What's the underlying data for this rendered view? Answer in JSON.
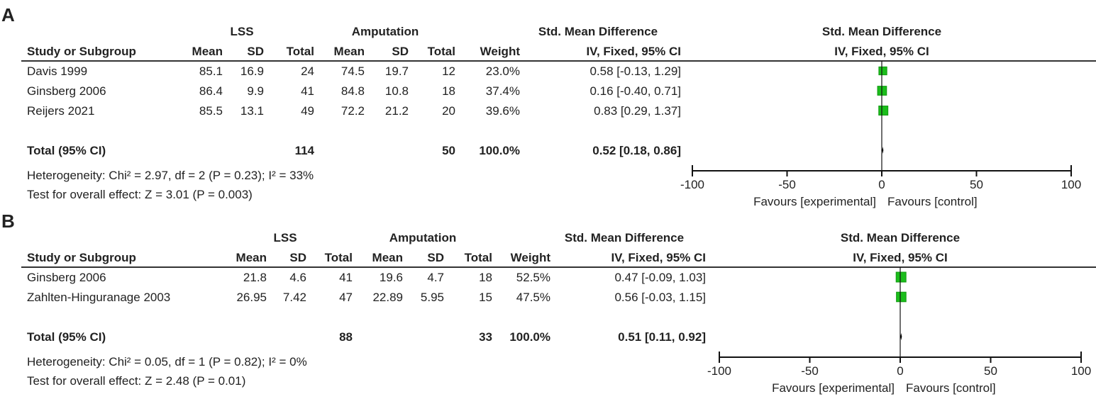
{
  "chart_data": [
    {
      "type": "forest",
      "label": "A",
      "group_experimental": "LSS",
      "group_control": "Amputation",
      "columns": [
        "Study or Subgroup",
        "Mean",
        "SD",
        "Total",
        "Mean",
        "SD",
        "Total",
        "Weight",
        "IV, Fixed, 95% CI"
      ],
      "effect_title": "Std. Mean Difference",
      "effect_method": "IV, Fixed, 95% CI",
      "plot_title": "Std. Mean Difference",
      "plot_method": "IV, Fixed, 95% CI",
      "studies": [
        {
          "name": "Davis 1999",
          "mean_e": "85.1",
          "sd_e": "16.9",
          "total_e": "24",
          "mean_c": "74.5",
          "sd_c": "19.7",
          "total_c": "12",
          "weight": "23.0%",
          "ci_text": "0.58 [-0.13, 1.29]",
          "est": 0.58,
          "lo": -0.13,
          "hi": 1.29,
          "w": 23.0
        },
        {
          "name": "Ginsberg 2006",
          "mean_e": "86.4",
          "sd_e": "9.9",
          "total_e": "41",
          "mean_c": "84.8",
          "sd_c": "10.8",
          "total_c": "18",
          "weight": "37.4%",
          "ci_text": "0.16 [-0.40, 0.71]",
          "est": 0.16,
          "lo": -0.4,
          "hi": 0.71,
          "w": 37.4
        },
        {
          "name": "Reijers 2021",
          "mean_e": "85.5",
          "sd_e": "13.1",
          "total_e": "49",
          "mean_c": "72.2",
          "sd_c": "21.2",
          "total_c": "20",
          "weight": "39.6%",
          "ci_text": "0.83 [0.29, 1.37]",
          "est": 0.83,
          "lo": 0.29,
          "hi": 1.37,
          "w": 39.6
        }
      ],
      "total": {
        "name": "Total (95% CI)",
        "total_e": "114",
        "total_c": "50",
        "weight": "100.0%",
        "ci_text": "0.52 [0.18, 0.86]",
        "est": 0.52,
        "lo": 0.18,
        "hi": 0.86
      },
      "heterogeneity": "Heterogeneity: Chi² = 2.97, df = 2 (P = 0.23); I² = 33%",
      "overall_effect": "Test for overall effect: Z = 3.01 (P = 0.003)",
      "xlim": [
        -100,
        100
      ],
      "ticks": [
        -100,
        -50,
        0,
        50,
        100
      ],
      "favours_left": "Favours [experimental]",
      "favours_right": "Favours [control]"
    },
    {
      "type": "forest",
      "label": "B",
      "group_experimental": "LSS",
      "group_control": "Amputation",
      "columns": [
        "Study or Subgroup",
        "Mean",
        "SD",
        "Total",
        "Mean",
        "SD",
        "Total",
        "Weight",
        "IV, Fixed, 95% CI"
      ],
      "effect_title": "Std. Mean Difference",
      "effect_method": "IV, Fixed, 95% CI",
      "plot_title": "Std. Mean Difference",
      "plot_method": "IV, Fixed, 95% CI",
      "studies": [
        {
          "name": "Ginsberg 2006",
          "mean_e": "21.8",
          "sd_e": "4.6",
          "total_e": "41",
          "mean_c": "19.6",
          "sd_c": "4.7",
          "total_c": "18",
          "weight": "52.5%",
          "ci_text": "0.47 [-0.09, 1.03]",
          "est": 0.47,
          "lo": -0.09,
          "hi": 1.03,
          "w": 52.5
        },
        {
          "name": "Zahlten-Hinguranage 2003",
          "mean_e": "26.95",
          "sd_e": "7.42",
          "total_e": "47",
          "mean_c": "22.89",
          "sd_c": "5.95",
          "total_c": "15",
          "weight": "47.5%",
          "ci_text": "0.56 [-0.03, 1.15]",
          "est": 0.56,
          "lo": -0.03,
          "hi": 1.15,
          "w": 47.5
        }
      ],
      "total": {
        "name": "Total (95% CI)",
        "total_e": "88",
        "total_c": "33",
        "weight": "100.0%",
        "ci_text": "0.51 [0.11, 0.92]",
        "est": 0.51,
        "lo": 0.11,
        "hi": 0.92
      },
      "heterogeneity": "Heterogeneity: Chi² = 0.05, df = 1 (P = 0.82); I² = 0%",
      "overall_effect": "Test for overall effect: Z = 2.48 (P = 0.01)",
      "xlim": [
        -100,
        100
      ],
      "ticks": [
        -100,
        -50,
        0,
        50,
        100
      ],
      "favours_left": "Favours [experimental]",
      "favours_right": "Favours [control]"
    }
  ],
  "colors": {
    "marker": "#1bbd1b",
    "marker_stroke": "#119911",
    "rule": "#333333",
    "axis": "#111111"
  }
}
